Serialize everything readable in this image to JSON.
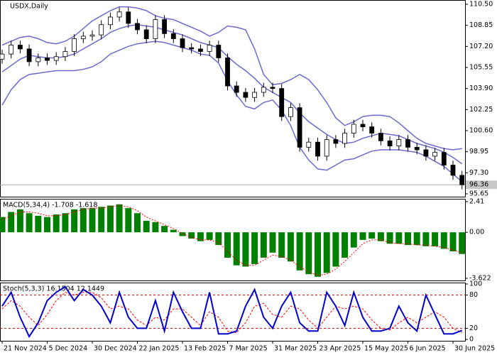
{
  "chart_data": [
    {
      "type": "candlestick",
      "title": "USDX,Daily",
      "categories": [
        "21 Nov 2024",
        null,
        null,
        null,
        null,
        "5 Dec 2024",
        null,
        null,
        null,
        null,
        "30 Dec 2024",
        null,
        null,
        null,
        null,
        "22 Jan 2025",
        null,
        null,
        null,
        null,
        "13 Feb 2025",
        null,
        null,
        null,
        null,
        "7 Mar 2025",
        null,
        null,
        null,
        null,
        "31 Mar 2025",
        null,
        null,
        null,
        null,
        "23 Apr 2025",
        null,
        null,
        null,
        null,
        "15 May 2025",
        null,
        null,
        null,
        null,
        "6 Jun 2025",
        null,
        null,
        null,
        null,
        "30 Jun 2025",
        null
      ],
      "open": [
        106.2,
        106.6,
        107.3,
        107.0,
        106.0,
        106.3,
        106.1,
        106.4,
        106.8,
        107.8,
        108.0,
        108.1,
        108.9,
        109.5,
        109.9,
        109.0,
        108.5,
        107.8,
        109.3,
        108.2,
        107.8,
        107.1,
        107.0,
        106.8,
        107.3,
        106.3,
        104.1,
        103.6,
        103.2,
        103.6,
        104.0,
        103.9,
        101.7,
        102.4,
        99.3,
        99.7,
        98.6,
        99.9,
        99.6,
        100.4,
        101.1,
        100.9,
        100.4,
        99.8,
        99.4,
        99.9,
        99.3,
        99.1,
        98.6,
        98.9,
        97.9,
        97.1
      ],
      "high": [
        106.95,
        107.65,
        107.65,
        107.35,
        106.65,
        106.65,
        106.75,
        107.15,
        108.15,
        108.35,
        108.45,
        109.25,
        109.85,
        110.25,
        110.25,
        109.35,
        108.85,
        109.65,
        109.65,
        108.55,
        108.15,
        107.45,
        107.35,
        107.65,
        107.65,
        106.65,
        104.45,
        103.95,
        103.95,
        104.35,
        104.35,
        104.25,
        102.75,
        102.75,
        100.05,
        100.05,
        100.25,
        100.25,
        100.75,
        101.45,
        101.45,
        101.25,
        100.75,
        100.15,
        100.25,
        100.25,
        99.65,
        99.45,
        99.25,
        99.25,
        98.25,
        97.45
      ],
      "low": [
        105.85,
        106.25,
        106.65,
        105.65,
        105.65,
        105.75,
        105.75,
        106.05,
        106.45,
        107.45,
        107.65,
        107.75,
        108.55,
        109.15,
        108.65,
        108.15,
        107.45,
        107.45,
        107.85,
        107.45,
        106.75,
        106.65,
        106.45,
        106.45,
        105.95,
        103.75,
        103.25,
        102.85,
        102.85,
        103.25,
        103.55,
        101.35,
        101.35,
        98.95,
        98.95,
        98.25,
        98.25,
        99.25,
        99.25,
        100.05,
        100.55,
        100.05,
        99.45,
        99.05,
        99.05,
        98.95,
        98.75,
        98.25,
        98.25,
        97.55,
        96.75,
        96.01
      ],
      "close": [
        106.6,
        107.3,
        107.0,
        106.0,
        106.3,
        106.1,
        106.4,
        106.8,
        107.8,
        108.0,
        108.1,
        108.9,
        109.5,
        109.9,
        109.0,
        108.5,
        107.8,
        109.3,
        108.2,
        107.8,
        107.1,
        107.0,
        106.8,
        107.3,
        106.3,
        104.1,
        103.6,
        103.2,
        103.6,
        104.0,
        103.9,
        101.7,
        102.4,
        99.3,
        99.7,
        98.6,
        99.9,
        99.6,
        100.4,
        101.1,
        100.9,
        100.4,
        99.8,
        99.4,
        99.9,
        99.3,
        99.1,
        98.6,
        98.9,
        97.9,
        97.1,
        96.36
      ],
      "up_color": "#ffffff",
      "down_color": "#000000",
      "series": [
        {
          "color": "#6a6ad0",
          "values": [
            107.3,
            107.6,
            107.9,
            108.0,
            107.8,
            107.5,
            107.4,
            107.6,
            108.0,
            108.6,
            109.2,
            109.6,
            110.0,
            110.3,
            110.3,
            110.2,
            110.0,
            109.6,
            109.4,
            109.3,
            109.0,
            108.7,
            108.4,
            108.0,
            108.3,
            108.8,
            108.7,
            108.5,
            107.0,
            105.0,
            104.2,
            104.3,
            104.6,
            105.0,
            104.6,
            103.8,
            102.8,
            101.6,
            101.0,
            101.3,
            101.7,
            101.8,
            101.8,
            101.7,
            101.2,
            100.6,
            100.0,
            99.6,
            99.4,
            99.2,
            99.1,
            99.2
          ]
        },
        {
          "color": "#6a6ad0",
          "values": [
            105.2,
            105.7,
            106.2,
            106.5,
            106.4,
            106.3,
            106.3,
            106.4,
            106.6,
            107.0,
            107.4,
            107.8,
            108.3,
            108.6,
            108.8,
            108.9,
            108.8,
            108.7,
            108.5,
            108.3,
            108.1,
            107.8,
            107.5,
            107.3,
            107.1,
            106.4,
            105.8,
            105.3,
            104.7,
            104.0,
            103.6,
            103.2,
            102.8,
            102.0,
            101.3,
            100.8,
            100.3,
            99.9,
            99.6,
            99.7,
            100.0,
            100.2,
            100.4,
            100.3,
            100.2,
            99.9,
            99.6,
            99.4,
            99.2,
            98.9,
            98.5,
            98.0
          ]
        },
        {
          "color": "#6a6ad0",
          "values": [
            102.6,
            103.8,
            104.6,
            105.0,
            105.1,
            105.2,
            105.3,
            105.3,
            105.3,
            105.4,
            105.6,
            106.0,
            106.6,
            106.9,
            107.2,
            107.4,
            107.5,
            107.6,
            107.5,
            107.3,
            107.1,
            106.9,
            106.6,
            106.5,
            105.9,
            104.5,
            103.4,
            102.5,
            102.3,
            102.8,
            103.0,
            102.2,
            101.0,
            99.3,
            98.3,
            97.6,
            97.5,
            97.9,
            98.3,
            98.4,
            98.7,
            99.0,
            99.1,
            99.1,
            99.1,
            99.0,
            98.9,
            98.6,
            98.2,
            97.8,
            97.2,
            96.6
          ]
        }
      ],
      "ylim": [
        95.65,
        110.5
      ],
      "yticks": [
        {
          "value": 110.5,
          "label": "110.50"
        },
        108.85,
        {
          "value": 107.2,
          "label": "107.20"
        },
        105.55,
        {
          "value": 103.9,
          "label": "103.90"
        },
        102.25,
        {
          "value": 100.6,
          "label": "100.60"
        },
        98.95,
        {
          "value": 97.3,
          "label": "97.30"
        },
        95.65
      ]
    },
    {
      "type": "macd",
      "title": "MACD(5,34,4) -1.708 -1.618",
      "color": "#008000",
      "values": [
        1.2,
        1.6,
        1.8,
        1.5,
        1.3,
        1.2,
        1.4,
        1.5,
        1.8,
        1.9,
        1.9,
        2.0,
        2.1,
        2.2,
        1.9,
        1.5,
        0.9,
        0.8,
        0.5,
        0.2,
        -0.3,
        -0.5,
        -0.7,
        -0.6,
        -1.0,
        -2.0,
        -2.6,
        -2.7,
        -2.5,
        -2.0,
        -1.6,
        -2.0,
        -2.3,
        -3.0,
        -3.3,
        -3.5,
        -3.2,
        -2.7,
        -2.0,
        -1.2,
        -0.6,
        -0.5,
        -0.7,
        -0.9,
        -0.9,
        -1.0,
        -1.0,
        -1.1,
        -1.1,
        -1.3,
        -1.5,
        -1.708
      ],
      "signal": {
        "color": "#ff0000",
        "values": [
          1.0,
          1.3,
          1.6,
          1.6,
          1.5,
          1.3,
          1.3,
          1.4,
          1.6,
          1.8,
          1.9,
          1.9,
          2.0,
          2.1,
          2.0,
          1.7,
          1.2,
          0.9,
          0.6,
          0.3,
          -0.1,
          -0.4,
          -0.6,
          -0.6,
          -0.8,
          -1.5,
          -2.2,
          -2.6,
          -2.6,
          -2.2,
          -1.8,
          -1.9,
          -2.2,
          -2.7,
          -3.1,
          -3.4,
          -3.3,
          -2.9,
          -2.3,
          -1.6,
          -0.9,
          -0.6,
          -0.6,
          -0.8,
          -0.9,
          -0.9,
          -1.0,
          -1.0,
          -1.1,
          -1.2,
          -1.4,
          -1.618
        ]
      },
      "ylim": [
        -3.622,
        2.41
      ],
      "yticks": [
        2.41,
        {
          "value": 0,
          "label": "0.00"
        },
        -3.622
      ]
    },
    {
      "type": "stochastic",
      "title": "Stoch(5,3,3) 16.1504 12.1449",
      "series": [
        {
          "color": "#0000cc",
          "values": [
            60,
            85,
            40,
            5,
            30,
            70,
            85,
            95,
            70,
            90,
            80,
            60,
            30,
            85,
            40,
            20,
            20,
            70,
            15,
            85,
            50,
            20,
            20,
            85,
            10,
            10,
            15,
            60,
            90,
            40,
            20,
            60,
            85,
            30,
            15,
            15,
            85,
            60,
            25,
            85,
            40,
            15,
            15,
            20,
            60,
            30,
            15,
            80,
            45,
            10,
            10,
            16.1504
          ]
        },
        {
          "color": "#ff0000",
          "values": [
            55,
            70,
            60,
            40,
            25,
            45,
            70,
            85,
            80,
            85,
            85,
            75,
            55,
            60,
            55,
            35,
            25,
            40,
            35,
            55,
            55,
            40,
            25,
            50,
            40,
            15,
            12,
            30,
            60,
            65,
            45,
            40,
            60,
            55,
            35,
            20,
            40,
            60,
            55,
            60,
            55,
            35,
            20,
            17,
            30,
            40,
            30,
            40,
            50,
            40,
            20,
            12.1449
          ]
        }
      ],
      "levels": [
        20,
        80
      ],
      "level_color": "#cc0000",
      "ylim": [
        0,
        100
      ],
      "yticks": [
        100,
        80,
        20,
        0
      ]
    }
  ]
}
